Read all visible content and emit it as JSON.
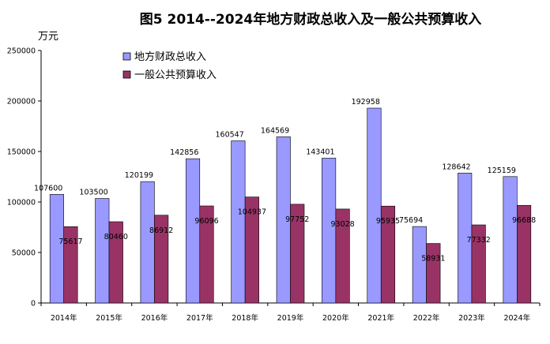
{
  "colors": {
    "series_1": "#9999ff",
    "series_2": "#993366",
    "axis": "#000000"
  },
  "chart_data": {
    "type": "bar",
    "title": "图5   2014--2024年地方财政总收入及一般公共预算收入",
    "unit_label": "万元",
    "xlabel": "",
    "ylabel": "万元",
    "categories": [
      "2014年",
      "2015年",
      "2016年",
      "2017年",
      "2018年",
      "2019年",
      "2020年",
      "2021年",
      "2022年",
      "2023年",
      "2024年"
    ],
    "series": [
      {
        "name": "地方财政总收入",
        "values": [
          107600,
          103500,
          120199,
          142856,
          160547,
          164569,
          143401,
          192958,
          75694,
          128642,
          125159
        ]
      },
      {
        "name": "一般公共预算收入",
        "values": [
          75617,
          80460,
          86912,
          96096,
          104937,
          97752,
          93028,
          95935,
          58931,
          77332,
          96688
        ]
      }
    ],
    "ylim": [
      0,
      250000
    ],
    "yticks": [
      0,
      50000,
      100000,
      150000,
      200000,
      250000
    ],
    "grid": false,
    "legend_position": "top-left",
    "data_labels": true
  }
}
